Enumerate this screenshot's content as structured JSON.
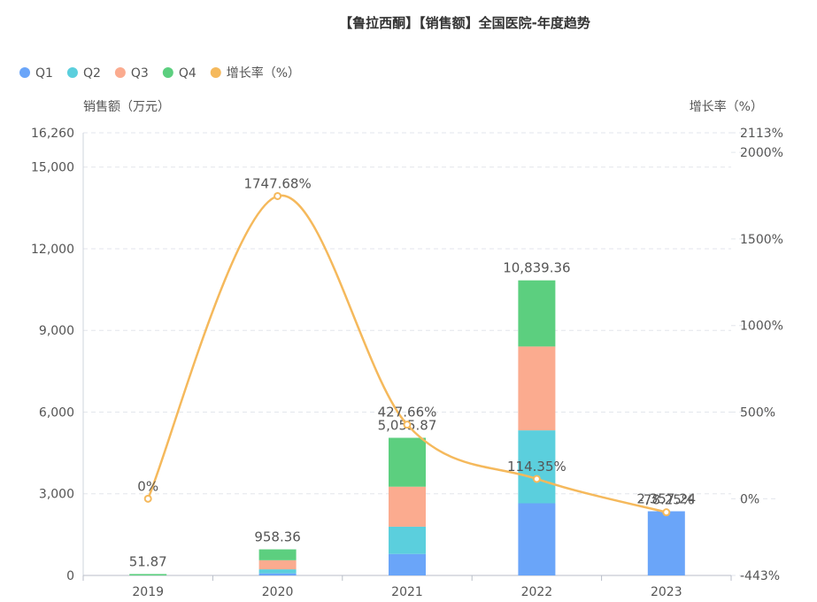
{
  "chart_data": {
    "type": "bar",
    "title": "【鲁拉西酮】【销售额】全国医院-年度趋势",
    "categories": [
      "2019",
      "2020",
      "2021",
      "2022",
      "2023"
    ],
    "series": [
      {
        "name": "Q1",
        "type": "bar",
        "color": "#6aa5f9",
        "values": [
          0,
          75,
          790,
          2650,
          2357.24
        ]
      },
      {
        "name": "Q2",
        "type": "bar",
        "color": "#5bcfdd",
        "values": [
          0,
          150,
          1000,
          2680,
          0
        ]
      },
      {
        "name": "Q3",
        "type": "bar",
        "color": "#fbab8f",
        "values": [
          0,
          333.36,
          1470,
          3080,
          0
        ]
      },
      {
        "name": "Q4",
        "type": "bar",
        "color": "#5ccf7f",
        "values": [
          51.87,
          400,
          1795.87,
          2429.36,
          0
        ]
      },
      {
        "name": "增长率（%）",
        "type": "line",
        "color": "#f5b95c",
        "axis": "right",
        "values": [
          0,
          1747.68,
          427.66,
          114.35,
          -78.25
        ]
      }
    ],
    "totals": [
      51.87,
      958.36,
      5055.87,
      10839.36,
      2357.24
    ],
    "total_labels": [
      "51.87",
      "958.36",
      "5,055.87",
      "10,839.36",
      "2,357.24"
    ],
    "growth_labels": [
      "0%",
      "1747.68%",
      "427.66%",
      "114.35%",
      "-78.25%"
    ],
    "y_left": {
      "label": "销售额（万元）",
      "min": 0,
      "max": 16260,
      "ticks": [
        0,
        3000,
        6000,
        9000,
        12000,
        15000,
        16260
      ],
      "tick_labels": [
        "0",
        "3,000",
        "6,000",
        "9,000",
        "12,000",
        "15,000",
        "16,260"
      ]
    },
    "y_right": {
      "label": "增长率（%）",
      "min": -443,
      "max": 2113,
      "ticks": [
        -443,
        0,
        500,
        1000,
        1500,
        2000,
        2113
      ],
      "tick_labels": [
        "-443%",
        "0%",
        "500%",
        "1000%",
        "1500%",
        "2000%",
        "2113%"
      ]
    },
    "legend_position": "top-left",
    "grid": true
  }
}
